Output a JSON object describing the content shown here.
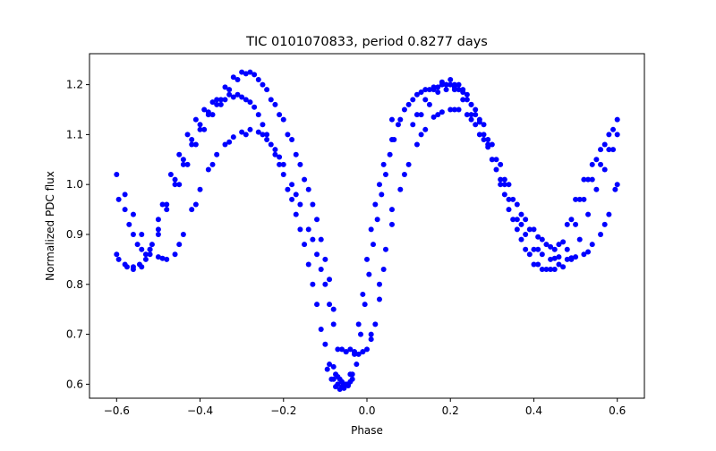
{
  "chart_data": {
    "type": "scatter",
    "title": "TIC 0101070833, period 0.8277 days",
    "xlabel": "Phase",
    "ylabel": "Normalized PDC flux",
    "xlim": [
      -0.665,
      0.665
    ],
    "ylim": [
      0.572,
      1.262
    ],
    "xticks": [
      -0.6,
      -0.4,
      -0.2,
      0.0,
      0.2,
      0.4,
      0.6
    ],
    "xtick_labels": [
      "−0.6",
      "−0.4",
      "−0.2",
      "0.0",
      "0.2",
      "0.4",
      "0.6"
    ],
    "yticks": [
      0.6,
      0.7,
      0.8,
      0.9,
      1.0,
      1.1,
      1.2
    ],
    "ytick_labels": [
      "0.6",
      "0.7",
      "0.8",
      "0.9",
      "1.0",
      "1.1",
      "1.2"
    ],
    "grid": false,
    "marker_color": "#0000ff",
    "series": [
      {
        "x": [
          -0.6,
          -0.58,
          -0.56,
          -0.54,
          -0.52,
          -0.5,
          -0.48,
          -0.46,
          -0.44,
          -0.42,
          -0.4,
          -0.38,
          -0.36,
          -0.34,
          -0.32,
          -0.3,
          -0.28,
          -0.26,
          -0.24,
          -0.22,
          -0.2,
          -0.18,
          -0.16,
          -0.14,
          -0.12,
          -0.1,
          -0.09,
          -0.08,
          -0.07,
          -0.06,
          -0.05,
          -0.04,
          -0.03,
          -0.02,
          -0.01,
          0.0,
          0.01,
          0.02,
          0.03,
          0.04,
          0.06,
          0.08,
          0.1,
          0.12,
          0.14,
          0.16,
          0.18,
          0.2,
          0.22,
          0.24,
          0.26,
          0.28,
          0.3,
          0.32,
          0.34,
          0.36,
          0.38,
          0.4,
          0.42,
          0.44,
          0.46,
          0.48,
          0.5,
          0.52,
          0.54,
          0.56,
          0.58,
          0.6
        ],
        "y": [
          0.86,
          0.84,
          0.835,
          0.835,
          0.86,
          0.91,
          0.96,
          1.01,
          1.05,
          1.09,
          1.12,
          1.145,
          1.16,
          1.17,
          1.175,
          1.175,
          1.165,
          1.14,
          1.1,
          1.06,
          1.02,
          0.97,
          0.91,
          0.84,
          0.76,
          0.68,
          0.64,
          0.61,
          0.6,
          0.595,
          0.6,
          0.62,
          0.66,
          0.72,
          0.78,
          0.85,
          0.91,
          0.96,
          1.0,
          1.04,
          1.09,
          1.13,
          1.16,
          1.18,
          1.19,
          1.195,
          1.2,
          1.2,
          1.19,
          1.17,
          1.14,
          1.1,
          1.05,
          1.0,
          0.95,
          0.91,
          0.87,
          0.84,
          0.83,
          0.83,
          0.84,
          0.87,
          0.92,
          0.97,
          1.01,
          1.04,
          1.07,
          1.1
        ]
      },
      {
        "x": [
          -0.6,
          -0.58,
          -0.56,
          -0.54,
          -0.52,
          -0.5,
          -0.48,
          -0.46,
          -0.44,
          -0.42,
          -0.4,
          -0.38,
          -0.36,
          -0.34,
          -0.32,
          -0.3,
          -0.28,
          -0.26,
          -0.24,
          -0.22,
          -0.2,
          -0.18,
          -0.16,
          -0.14,
          -0.12,
          -0.1,
          -0.08,
          -0.06,
          -0.05,
          -0.04,
          -0.03,
          -0.02,
          -0.01,
          0.0,
          0.01,
          0.02,
          0.03,
          0.04,
          0.06,
          0.08,
          0.1,
          0.12,
          0.14,
          0.16,
          0.18,
          0.2,
          0.22,
          0.24,
          0.26,
          0.28,
          0.3,
          0.32,
          0.34,
          0.36,
          0.38,
          0.4,
          0.42,
          0.44,
          0.46,
          0.48,
          0.5,
          0.52,
          0.54,
          0.56,
          0.58,
          0.6
        ],
        "y": [
          1.02,
          0.98,
          0.94,
          0.9,
          0.87,
          0.855,
          0.85,
          0.86,
          0.9,
          0.95,
          0.99,
          1.03,
          1.06,
          1.08,
          1.095,
          1.105,
          1.11,
          1.105,
          1.09,
          1.07,
          1.04,
          1.0,
          0.96,
          0.91,
          0.86,
          0.8,
          0.72,
          0.67,
          0.665,
          0.67,
          0.665,
          0.66,
          0.665,
          0.67,
          0.69,
          0.72,
          0.77,
          0.83,
          0.92,
          0.99,
          1.04,
          1.08,
          1.11,
          1.135,
          1.145,
          1.15,
          1.15,
          1.14,
          1.12,
          1.09,
          1.05,
          1.01,
          0.97,
          0.93,
          0.9,
          0.87,
          0.86,
          0.85,
          0.855,
          0.85,
          0.855,
          0.86,
          0.88,
          0.9,
          0.94,
          1.0
        ]
      },
      {
        "x": [
          -0.58,
          -0.56,
          -0.54,
          -0.52,
          -0.5,
          -0.48,
          -0.46,
          -0.44,
          -0.42,
          -0.4,
          -0.38,
          -0.36,
          -0.34,
          -0.32,
          -0.3,
          -0.28,
          -0.26,
          -0.24,
          -0.22,
          -0.2,
          -0.18,
          -0.16,
          -0.14,
          -0.12,
          -0.1,
          -0.08,
          0.12,
          0.14,
          0.16,
          0.18,
          0.2,
          0.22,
          0.24,
          0.26,
          0.28,
          0.3,
          0.32,
          0.34,
          0.36,
          0.38,
          0.4,
          0.42,
          0.44,
          0.46,
          0.48,
          0.5,
          0.52,
          0.54,
          0.56,
          0.58,
          0.6
        ],
        "y": [
          0.95,
          0.9,
          0.87,
          0.87,
          0.9,
          0.95,
          1.0,
          1.04,
          1.08,
          1.11,
          1.14,
          1.17,
          1.195,
          1.215,
          1.225,
          1.225,
          1.21,
          1.19,
          1.16,
          1.13,
          1.09,
          1.04,
          0.99,
          0.93,
          0.85,
          0.75,
          1.14,
          1.17,
          1.19,
          1.205,
          1.21,
          1.2,
          1.18,
          1.15,
          1.12,
          1.08,
          1.04,
          1.0,
          0.96,
          0.93,
          0.91,
          0.89,
          0.875,
          0.88,
          0.92,
          0.97,
          1.01,
          1.04,
          1.07,
          1.1,
          1.13
        ]
      },
      {
        "x": [
          -0.595,
          -0.575,
          -0.56,
          -0.545,
          -0.53,
          -0.515,
          -0.5,
          -0.49,
          -0.47,
          -0.45,
          -0.43,
          -0.41,
          -0.39,
          -0.37,
          -0.35,
          -0.33,
          -0.31,
          -0.29,
          -0.27,
          -0.25,
          -0.23,
          -0.21,
          -0.19,
          -0.17,
          -0.15,
          -0.13,
          -0.11,
          -0.095,
          -0.085,
          -0.075,
          -0.065,
          -0.055,
          -0.045,
          -0.035,
          -0.025,
          -0.015,
          -0.005,
          0.005,
          0.015,
          0.025,
          0.035,
          0.045,
          0.055,
          0.065,
          0.075,
          0.09,
          0.11,
          0.13,
          0.15,
          0.17,
          0.19,
          0.21,
          0.23,
          0.25,
          0.27,
          0.29,
          0.31,
          0.33,
          0.35,
          0.37,
          0.39,
          0.41,
          0.43,
          0.45,
          0.47,
          0.49,
          0.51,
          0.53,
          0.55,
          0.57,
          0.59
        ],
        "y": [
          0.85,
          0.835,
          0.83,
          0.84,
          0.85,
          0.88,
          0.93,
          0.96,
          1.02,
          1.06,
          1.1,
          1.13,
          1.15,
          1.165,
          1.17,
          1.18,
          1.18,
          1.17,
          1.155,
          1.12,
          1.08,
          1.04,
          0.99,
          0.94,
          0.88,
          0.8,
          0.71,
          0.63,
          0.61,
          0.595,
          0.59,
          0.592,
          0.597,
          0.61,
          0.64,
          0.7,
          0.76,
          0.82,
          0.88,
          0.93,
          0.98,
          1.02,
          1.06,
          1.09,
          1.12,
          1.15,
          1.17,
          1.185,
          1.19,
          1.195,
          1.2,
          1.195,
          1.185,
          1.16,
          1.125,
          1.08,
          1.03,
          0.98,
          0.93,
          0.89,
          0.86,
          0.84,
          0.83,
          0.83,
          0.835,
          0.85,
          0.89,
          0.94,
          0.99,
          1.03,
          1.07
        ]
      },
      {
        "x": [
          -0.595,
          -0.57,
          -0.55,
          -0.53,
          -0.49,
          -0.45,
          -0.41,
          -0.37,
          -0.33,
          -0.29,
          -0.25,
          -0.21,
          -0.17,
          -0.13,
          -0.11,
          -0.09,
          -0.07,
          -0.05,
          -0.03,
          -0.01,
          0.01,
          0.03,
          0.045,
          0.06,
          0.09,
          0.13,
          0.17,
          0.21,
          0.25,
          0.29,
          0.33,
          0.37,
          0.41,
          0.45,
          0.49,
          0.53,
          0.57,
          0.595
        ],
        "y": [
          0.97,
          0.92,
          0.88,
          0.86,
          0.852,
          0.88,
          0.96,
          1.04,
          1.085,
          1.1,
          1.1,
          1.055,
          0.98,
          0.89,
          0.83,
          0.76,
          0.67,
          0.665,
          0.665,
          0.665,
          0.7,
          0.8,
          0.87,
          0.95,
          1.02,
          1.1,
          1.14,
          1.15,
          1.13,
          1.075,
          1.0,
          0.92,
          0.87,
          0.852,
          0.853,
          0.865,
          0.92,
          0.99
        ]
      },
      {
        "x": [
          -0.45,
          -0.43,
          -0.41,
          -0.39,
          -0.37,
          -0.35,
          -0.33,
          -0.31,
          -0.29,
          -0.27,
          -0.25,
          -0.23,
          -0.21,
          -0.19,
          -0.17,
          -0.15,
          -0.13,
          -0.11,
          -0.09,
          0.06,
          0.11,
          0.13,
          0.15,
          0.17,
          0.19,
          0.21,
          0.23,
          0.25,
          0.27,
          0.29,
          0.31,
          0.33,
          0.35,
          0.37,
          0.39,
          0.41,
          0.43,
          0.45,
          0.47,
          0.49,
          0.51,
          0.53,
          0.55,
          0.57,
          0.59
        ],
        "y": [
          1.0,
          1.04,
          1.08,
          1.11,
          1.14,
          1.16,
          1.19,
          1.21,
          1.222,
          1.22,
          1.2,
          1.17,
          1.14,
          1.1,
          1.06,
          1.01,
          0.96,
          0.89,
          0.81,
          1.13,
          1.12,
          1.14,
          1.16,
          1.185,
          1.2,
          1.2,
          1.19,
          1.16,
          1.13,
          1.09,
          1.05,
          1.01,
          0.97,
          0.94,
          0.91,
          0.895,
          0.88,
          0.87,
          0.885,
          0.93,
          0.97,
          1.01,
          1.05,
          1.08,
          1.11
        ]
      },
      {
        "x": [
          -0.06,
          -0.055,
          -0.05,
          -0.045,
          -0.04,
          -0.065,
          -0.07,
          -0.075,
          -0.08,
          -0.035,
          0.19,
          0.21,
          0.23,
          0.25,
          0.27
        ],
        "y": [
          0.605,
          0.6,
          0.598,
          0.6,
          0.605,
          0.61,
          0.615,
          0.62,
          0.635,
          0.62,
          1.19,
          1.19,
          1.17,
          1.14,
          1.1
        ]
      }
    ]
  }
}
